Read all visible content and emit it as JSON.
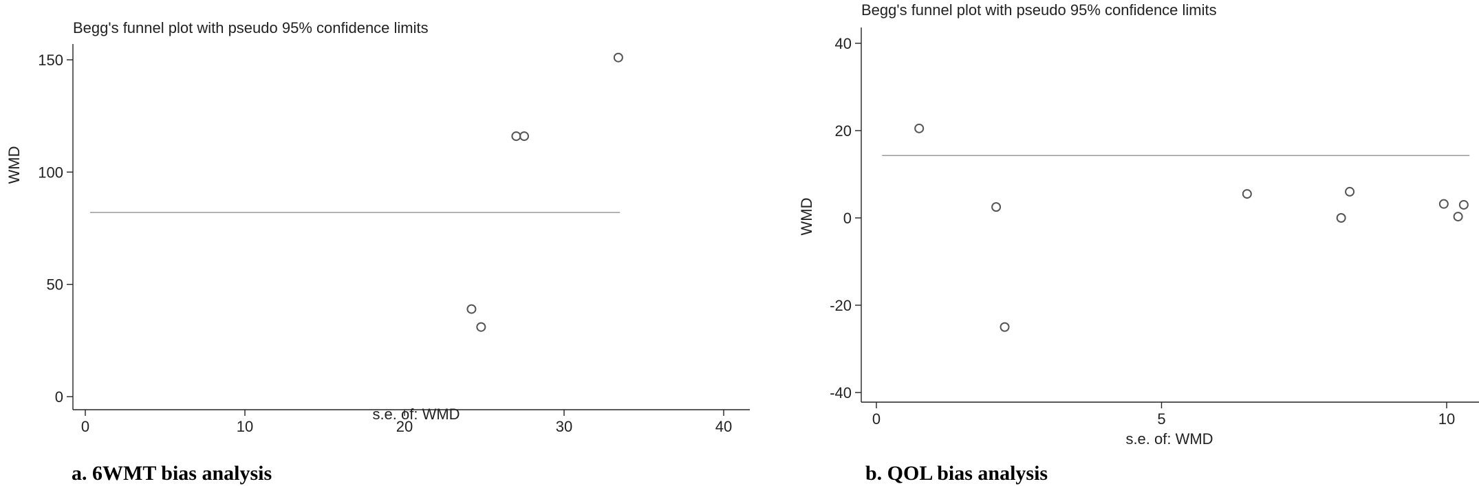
{
  "chart_data": [
    {
      "type": "scatter",
      "title": "Begg's funnel plot with pseudo 95% confidence limits",
      "xlabel": "s.e. of: WMD",
      "ylabel": "WMD",
      "caption": "a. 6WMT bias analysis",
      "xlim": [
        0,
        40
      ],
      "ylim": [
        0,
        150
      ],
      "xticks": [
        0,
        10,
        20,
        30,
        40
      ],
      "yticks": [
        0,
        50,
        100,
        150
      ],
      "reference_line": {
        "y": 82,
        "x_from": 0.3,
        "x_to": 33.5
      },
      "points": [
        {
          "x": 24.2,
          "y": 39
        },
        {
          "x": 24.8,
          "y": 31
        },
        {
          "x": 27.0,
          "y": 116
        },
        {
          "x": 27.5,
          "y": 116
        },
        {
          "x": 33.4,
          "y": 151
        }
      ]
    },
    {
      "type": "scatter",
      "title": "Begg's funnel plot with pseudo 95% confidence limits",
      "xlabel": "s.e. of: WMD",
      "ylabel": "WMD",
      "caption": "b. QOL bias analysis",
      "xlim": [
        0,
        10
      ],
      "ylim": [
        -40,
        40
      ],
      "xticks": [
        0,
        5,
        10
      ],
      "yticks": [
        -40,
        -20,
        0,
        20,
        40
      ],
      "reference_line": {
        "y": 14.3,
        "x_from": 0.1,
        "x_to": 10.4
      },
      "points": [
        {
          "x": 0.75,
          "y": 20.5
        },
        {
          "x": 2.1,
          "y": 2.5
        },
        {
          "x": 2.25,
          "y": -25
        },
        {
          "x": 6.5,
          "y": 5.5
        },
        {
          "x": 8.15,
          "y": 0
        },
        {
          "x": 8.3,
          "y": 6
        },
        {
          "x": 9.95,
          "y": 3.2
        },
        {
          "x": 10.2,
          "y": 0.3
        },
        {
          "x": 10.3,
          "y": 3
        }
      ]
    }
  ]
}
